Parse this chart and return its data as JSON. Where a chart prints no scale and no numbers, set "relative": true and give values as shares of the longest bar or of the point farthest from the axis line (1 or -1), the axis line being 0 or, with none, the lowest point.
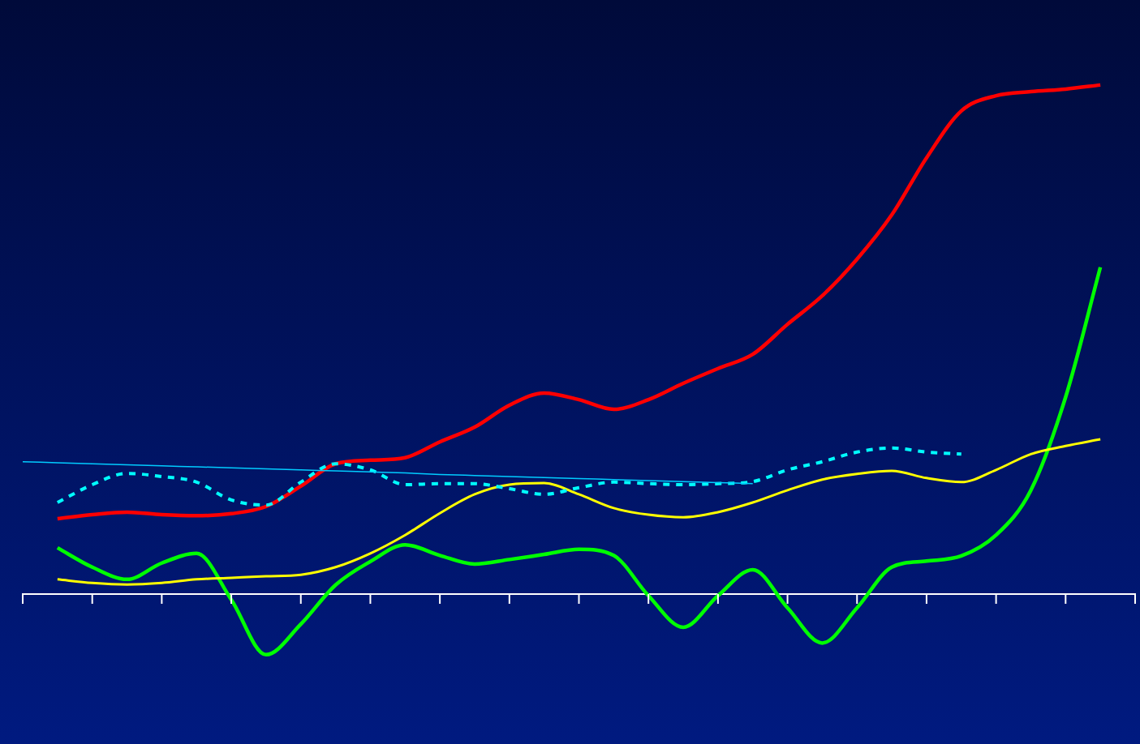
{
  "chart_data": {
    "type": "line",
    "relative": true,
    "marker": "none",
    "categories": [
      null,
      null,
      null,
      null,
      null,
      null,
      null,
      null,
      null,
      null,
      null,
      null,
      null,
      null,
      null,
      null,
      null,
      null,
      null,
      null,
      null,
      null,
      null,
      null,
      null,
      null,
      null,
      null,
      null,
      null,
      null,
      null,
      null
    ],
    "series": [
      {
        "color": "#00ccff",
        "line_style": "solid",
        "values": [
          0.26,
          0.258,
          0.256,
          0.254,
          0.252,
          0.25,
          0.248,
          0.246,
          0.244,
          0.242,
          0.24,
          0.238,
          0.235,
          0.233,
          0.231,
          0.229,
          0.227,
          0.225,
          0.223,
          0.221,
          0.219,
          0.217,
          null,
          null,
          null,
          null,
          null,
          null,
          null,
          null,
          null,
          null,
          null
        ]
      },
      {
        "color": "#00ffff",
        "line_style": "dashed",
        "values": [
          null,
          0.18,
          0.215,
          0.237,
          0.231,
          0.22,
          0.185,
          0.175,
          0.22,
          0.256,
          0.244,
          0.215,
          0.217,
          0.217,
          0.207,
          0.196,
          0.209,
          0.22,
          0.217,
          0.215,
          0.217,
          0.221,
          0.244,
          0.26,
          0.279,
          0.287,
          0.279,
          0.275,
          null,
          null,
          null,
          null,
          null
        ]
      },
      {
        "color": "#ffff00",
        "line_style": "solid",
        "values": [
          null,
          0.029,
          0.022,
          0.019,
          0.022,
          0.029,
          0.032,
          0.035,
          0.038,
          0.053,
          0.08,
          0.116,
          0.159,
          0.196,
          0.215,
          0.218,
          0.196,
          0.169,
          0.156,
          0.151,
          0.161,
          0.18,
          0.204,
          0.225,
          0.236,
          0.242,
          0.228,
          0.22,
          0.244,
          0.275,
          0.291,
          0.304,
          null
        ]
      },
      {
        "color": "#00ff00",
        "line_style": "solid",
        "values": [
          null,
          0.091,
          0.053,
          0.029,
          0.061,
          0.08,
          -0.011,
          -0.119,
          -0.059,
          0.018,
          0.064,
          0.097,
          0.076,
          0.059,
          0.068,
          0.078,
          0.088,
          0.076,
          -0.003,
          -0.065,
          -0.003,
          0.048,
          -0.027,
          -0.096,
          -0.027,
          0.053,
          0.065,
          0.075,
          0.116,
          0.204,
          0.387,
          0.642,
          null
        ]
      },
      {
        "color": "#ff0000",
        "line_style": "solid",
        "values": [
          null,
          0.148,
          0.156,
          0.161,
          0.156,
          0.154,
          0.158,
          0.172,
          0.212,
          0.256,
          0.263,
          0.268,
          0.299,
          0.328,
          0.371,
          0.395,
          0.382,
          0.363,
          0.382,
          0.414,
          0.443,
          0.471,
          0.53,
          0.586,
          0.658,
          0.745,
          0.857,
          0.949,
          0.979,
          0.987,
          0.992,
          1.0,
          null
        ]
      }
    ]
  }
}
